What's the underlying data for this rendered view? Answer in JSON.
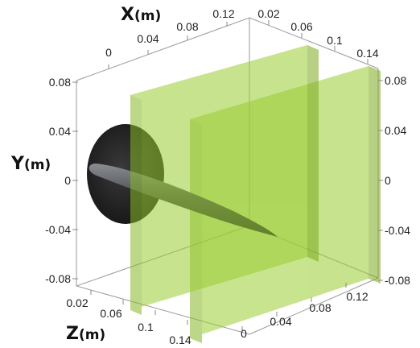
{
  "axes": {
    "x": {
      "name": "X",
      "unit": "(m)",
      "ticks_top": [
        "0",
        "0.04",
        "0.08",
        "0.12"
      ],
      "ticks_top_right": [
        "0.02",
        "0.06",
        "0.1",
        "0.14"
      ]
    },
    "y": {
      "name": "Y",
      "unit": "(m)",
      "ticks_left": [
        "0.08",
        "0.04",
        "0",
        "-0.04",
        "-0.08"
      ],
      "ticks_right": [
        "0.08",
        "0.04",
        "0",
        "-0.04",
        "-0.08"
      ]
    },
    "z": {
      "name": "Z",
      "unit": "(m)",
      "ticks_bottom_left": [
        "0.02",
        "0.06",
        "0.1",
        "0.14"
      ],
      "ticks_bottom_right": [
        "0",
        "0.04",
        "0.08",
        "0.12"
      ]
    }
  },
  "colors": {
    "plate_fill": "#9acd32",
    "plate_opacity": 0.55,
    "disk": "#2b2b2b",
    "needle": "#4a4d52",
    "bbox_edge": "#9a9a9a"
  },
  "objects": [
    "plate-front",
    "plate-back",
    "disk",
    "needle"
  ]
}
